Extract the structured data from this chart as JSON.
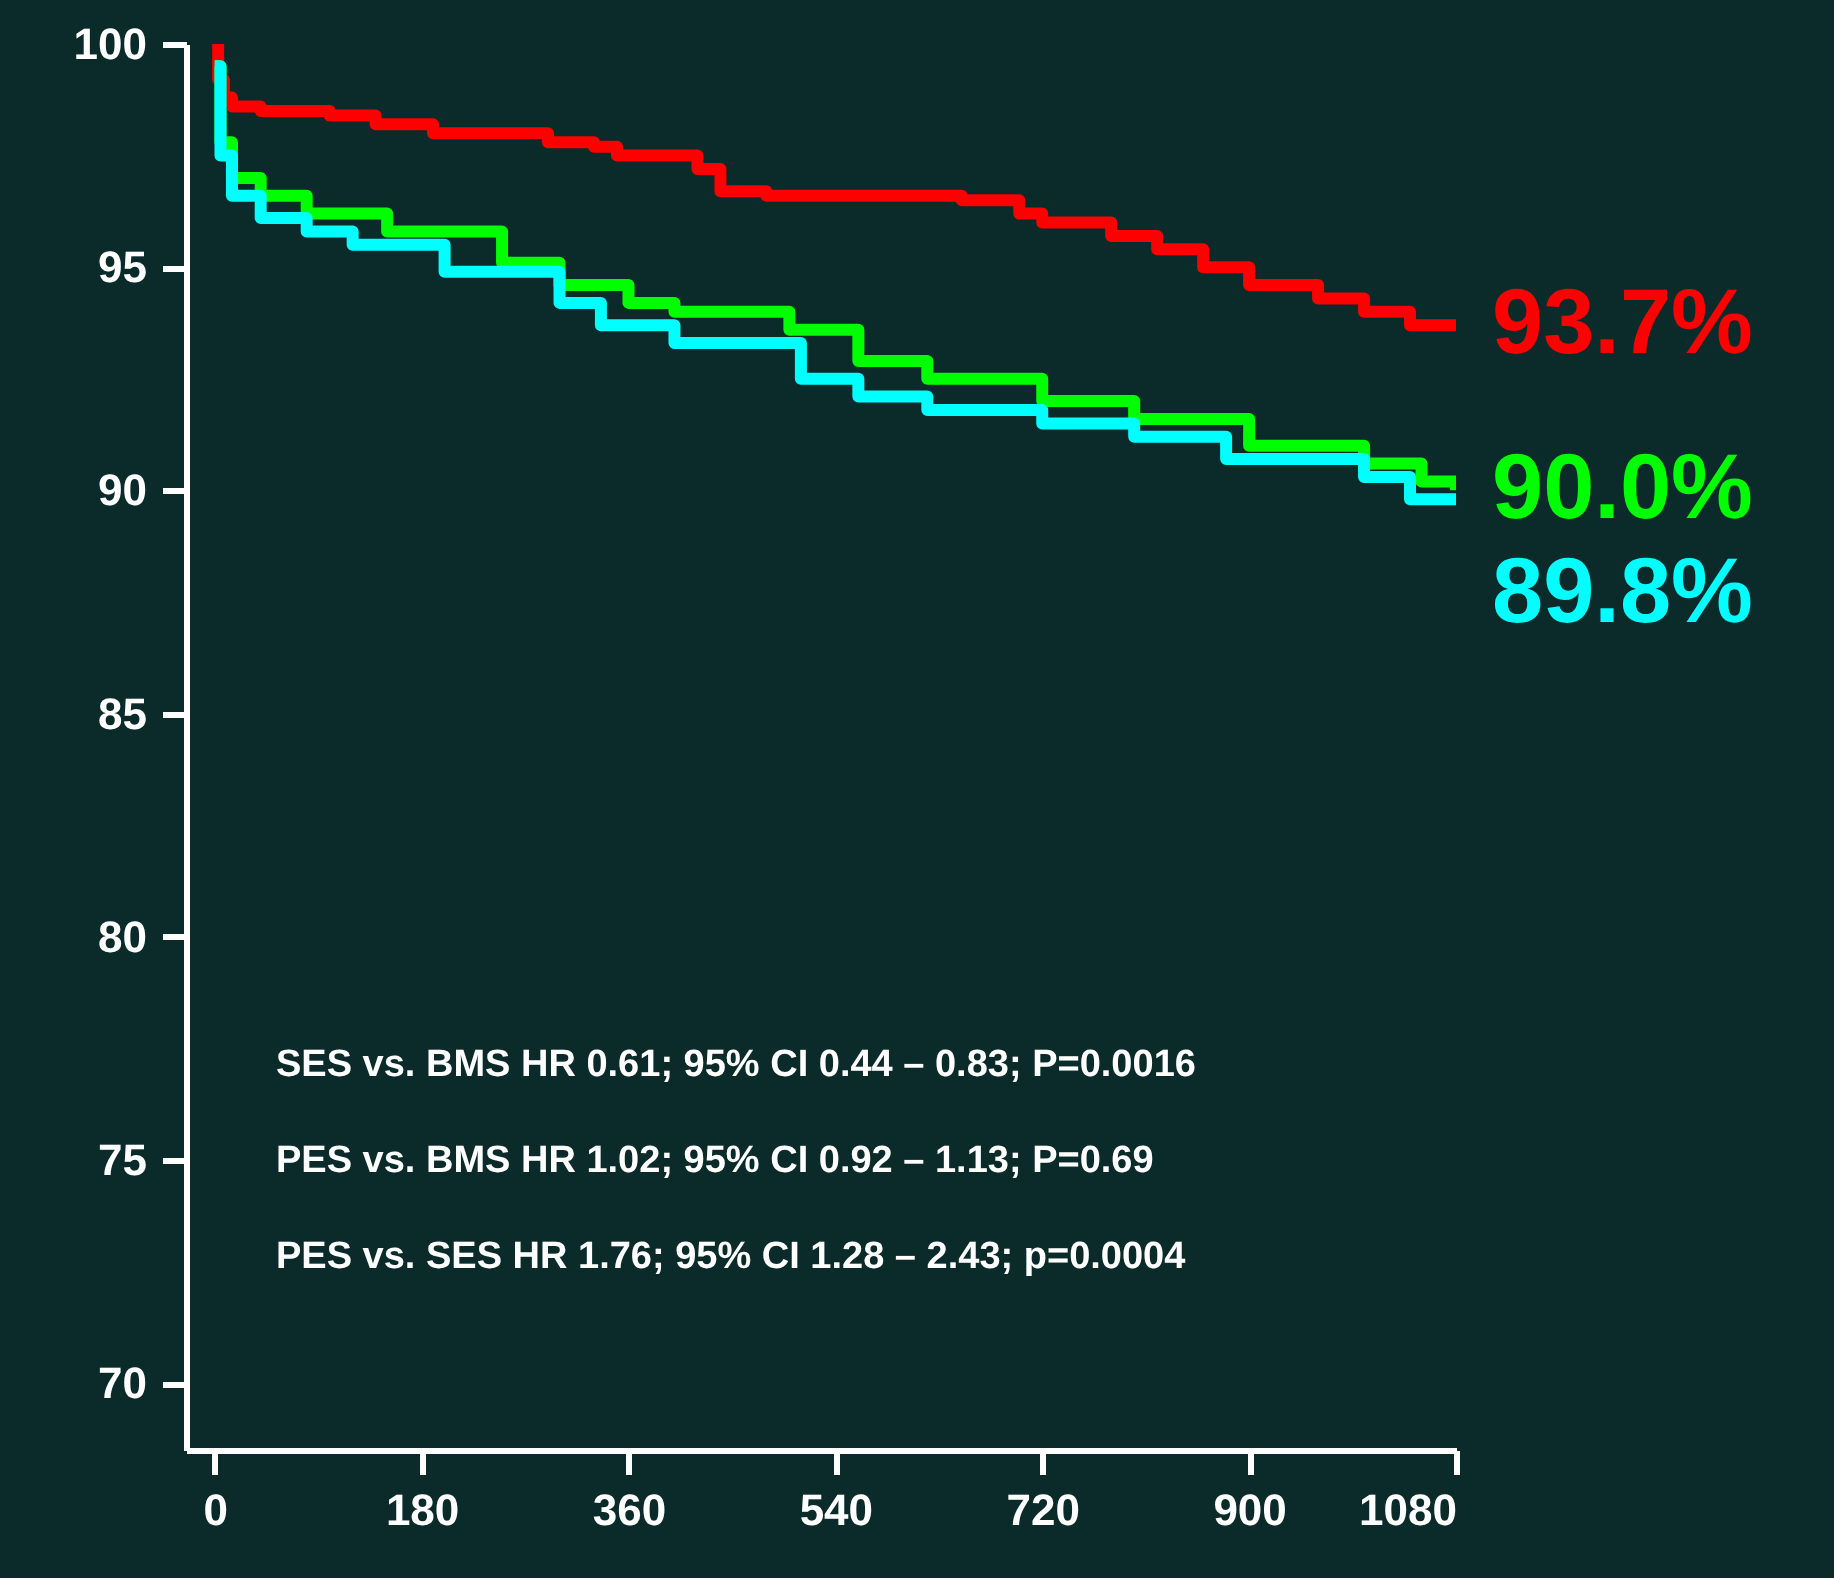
{
  "chart_data": {
    "type": "step",
    "xlim": [
      -25,
      1080
    ],
    "ylim": [
      68.5,
      100
    ],
    "xticks": [
      0,
      180,
      360,
      540,
      720,
      900,
      1080
    ],
    "yticks": [
      70,
      75,
      80,
      85,
      90,
      95,
      100
    ],
    "grid": false,
    "legend": false,
    "line_style": "solid",
    "series": [
      {
        "color": "#ff0000",
        "x": [
          0,
          3,
          8,
          15,
          40,
          100,
          140,
          190,
          290,
          330,
          350,
          420,
          440,
          480,
          650,
          700,
          720,
          780,
          820,
          860,
          900,
          960,
          1000,
          1040,
          1080
        ],
        "values": [
          100,
          99.2,
          98.8,
          98.6,
          98.5,
          98.4,
          98.2,
          98.0,
          97.8,
          97.7,
          97.5,
          97.2,
          96.7,
          96.6,
          96.5,
          96.2,
          96.0,
          95.7,
          95.4,
          95.0,
          94.6,
          94.3,
          94.0,
          93.7,
          93.7
        ],
        "value_labels": [
          null,
          null,
          null,
          null,
          null,
          null,
          null,
          null,
          null,
          null,
          null,
          null,
          null,
          null,
          null,
          null,
          null,
          null,
          null,
          null,
          null,
          null,
          null,
          null,
          "93.7%"
        ]
      },
      {
        "color": "#00ff00",
        "x": [
          0,
          5,
          15,
          40,
          80,
          150,
          250,
          300,
          360,
          400,
          500,
          560,
          620,
          720,
          800,
          900,
          1000,
          1050,
          1080
        ],
        "values": [
          99.5,
          97.8,
          97.0,
          96.6,
          96.2,
          95.8,
          95.1,
          94.6,
          94.2,
          94.0,
          93.6,
          92.9,
          92.5,
          92.0,
          91.6,
          91.0,
          90.6,
          90.2,
          90.0
        ],
        "value_labels": [
          null,
          null,
          null,
          null,
          null,
          null,
          null,
          null,
          null,
          null,
          null,
          null,
          null,
          null,
          null,
          null,
          null,
          null,
          "90.0%"
        ]
      },
      {
        "color": "#00ffff",
        "x": [
          0,
          5,
          15,
          40,
          80,
          120,
          200,
          300,
          336,
          400,
          510,
          560,
          620,
          720,
          800,
          880,
          1000,
          1040,
          1080
        ],
        "values": [
          99.5,
          97.5,
          96.6,
          96.1,
          95.8,
          95.5,
          94.9,
          94.2,
          93.7,
          93.3,
          92.5,
          92.1,
          91.8,
          91.5,
          91.2,
          90.7,
          90.3,
          89.8,
          89.8
        ],
        "value_labels": [
          null,
          null,
          null,
          null,
          null,
          null,
          null,
          null,
          null,
          null,
          null,
          null,
          null,
          null,
          null,
          null,
          null,
          null,
          "89.8%"
        ]
      }
    ],
    "annotations": [
      "SES vs. BMS HR 0.61; 95% CI 0.44 – 0.83; P=0.0016",
      "PES vs. BMS HR 1.02; 95% CI 0.92 – 1.13; P=0.69",
      "PES vs. SES HR 1.76; 95% CI 1.28 – 2.43; p=0.0004"
    ]
  }
}
